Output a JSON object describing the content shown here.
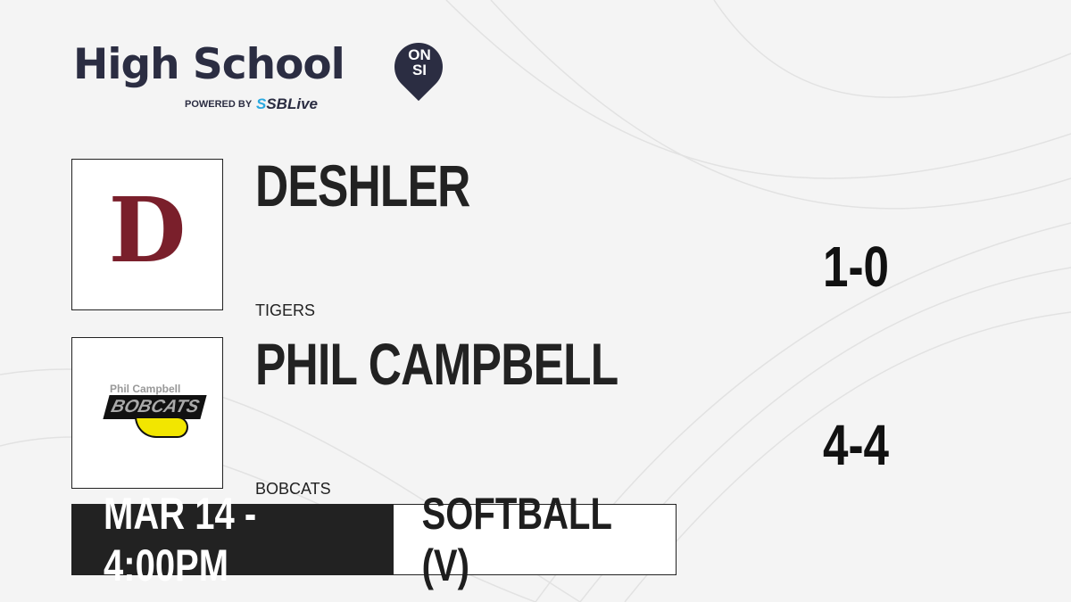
{
  "brand": {
    "title": "High School",
    "badge_top": "ON",
    "badge_bottom": "SI",
    "powered_by": "POWERED BY",
    "partner_prefix": "S",
    "partner": "SBLive",
    "color": "#2b2d42",
    "accent": "#29a8e0"
  },
  "teams": [
    {
      "name": "DESHLER",
      "mascot": "TIGERS",
      "record": "1-0",
      "logo_letter": "D",
      "logo_color": "#7a1f2b"
    },
    {
      "name": "PHIL CAMPBELL",
      "mascot": "BOBCATS",
      "record": "4-4",
      "logo_text_top": "Phil Campbell",
      "logo_text": "BOBCATS",
      "logo_color": "#f2e600"
    }
  ],
  "game": {
    "datetime": "MAR 14 - 4:00PM",
    "sport": "SOFTBALL (V)"
  }
}
